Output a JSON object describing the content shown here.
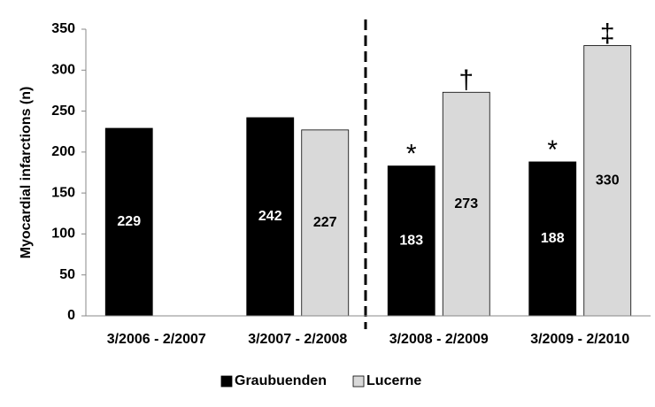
{
  "chart_data": {
    "type": "bar",
    "y_label": "Myocardial infarctions (n)",
    "categories": [
      "3/2006 - 2/2007",
      "3/2007 - 2/2008",
      "3/2008 - 2/2009",
      "3/2009 - 2/2010"
    ],
    "series": [
      {
        "name": "Graubuenden",
        "color": "#000000",
        "label_color": "#ffffff",
        "values": [
          229,
          242,
          183,
          188
        ],
        "markers": [
          null,
          null,
          "*",
          "*"
        ]
      },
      {
        "name": "Lucerne",
        "color": "#d9d9d9",
        "label_color": "#000000",
        "values": [
          null,
          227,
          273,
          330
        ],
        "markers": [
          null,
          null,
          "†",
          "‡"
        ]
      }
    ],
    "ylim": [
      0,
      350
    ],
    "yticks": [
      0,
      50,
      100,
      150,
      200,
      250,
      300,
      350
    ],
    "grid": false,
    "legend": "bottom"
  }
}
